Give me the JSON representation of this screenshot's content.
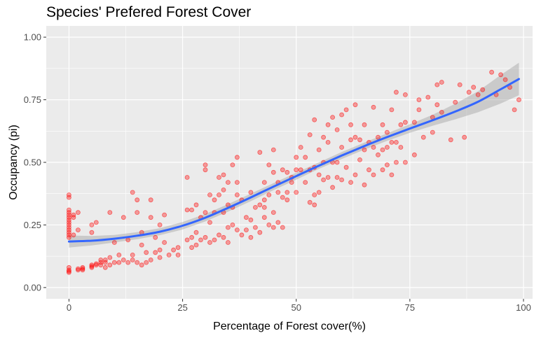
{
  "chart_data": {
    "type": "scatter",
    "title": "Species' Prefered Forest Cover",
    "xlabel": "Percentage of Forest cover(%)",
    "ylabel": "Occupancy (pi)",
    "xlim": [
      -5,
      102
    ],
    "ylim": [
      -0.045,
      1.045
    ],
    "x_ticks": [
      0,
      25,
      50,
      75,
      100
    ],
    "x_tick_labels": [
      "0",
      "25",
      "50",
      "75",
      "100"
    ],
    "y_ticks": [
      0,
      0.25,
      0.5,
      0.75,
      1.0
    ],
    "y_tick_labels": [
      "0.00",
      "0.25",
      "0.50",
      "0.75",
      "1.00"
    ],
    "grid": true,
    "legend": "none",
    "colors": {
      "panel_background": "#ebebeb",
      "grid": "#ffffff",
      "points": "#ff0000",
      "smooth_line": "#3366ff",
      "confidence_band": "#999999"
    },
    "points": [
      [
        0,
        0.37
      ],
      [
        0,
        0.36
      ],
      [
        0,
        0.31
      ],
      [
        0,
        0.3
      ],
      [
        0,
        0.29
      ],
      [
        0,
        0.28
      ],
      [
        0,
        0.27
      ],
      [
        0,
        0.26
      ],
      [
        0,
        0.25
      ],
      [
        0,
        0.24
      ],
      [
        0,
        0.23
      ],
      [
        0,
        0.22
      ],
      [
        0,
        0.21
      ],
      [
        0,
        0.2
      ],
      [
        0,
        0.08
      ],
      [
        0,
        0.07
      ],
      [
        0,
        0.065
      ],
      [
        0,
        0.06
      ],
      [
        1,
        0.29
      ],
      [
        1,
        0.28
      ],
      [
        1,
        0.21
      ],
      [
        2,
        0.3
      ],
      [
        2,
        0.23
      ],
      [
        2,
        0.07
      ],
      [
        2,
        0.075
      ],
      [
        3,
        0.075
      ],
      [
        3,
        0.08
      ],
      [
        3,
        0.07
      ],
      [
        5,
        0.25
      ],
      [
        5,
        0.22
      ],
      [
        5,
        0.09
      ],
      [
        5,
        0.08
      ],
      [
        5,
        0.085
      ],
      [
        6,
        0.26
      ],
      [
        6,
        0.09
      ],
      [
        6,
        0.095
      ],
      [
        7,
        0.1
      ],
      [
        7,
        0.11
      ],
      [
        7,
        0.09
      ],
      [
        8,
        0.11
      ],
      [
        8,
        0.1
      ],
      [
        8,
        0.08
      ],
      [
        9,
        0.3
      ],
      [
        9,
        0.12
      ],
      [
        9,
        0.09
      ],
      [
        10,
        0.18
      ],
      [
        10,
        0.1
      ],
      [
        11,
        0.13
      ],
      [
        11,
        0.1
      ],
      [
        12,
        0.28
      ],
      [
        12,
        0.11
      ],
      [
        13,
        0.19
      ],
      [
        13,
        0.1
      ],
      [
        14,
        0.38
      ],
      [
        14,
        0.13
      ],
      [
        14,
        0.11
      ],
      [
        15,
        0.35
      ],
      [
        15,
        0.3
      ],
      [
        15,
        0.1
      ],
      [
        16,
        0.22
      ],
      [
        16,
        0.17
      ],
      [
        16,
        0.09
      ],
      [
        17,
        0.14
      ],
      [
        17,
        0.1
      ],
      [
        18,
        0.35
      ],
      [
        18,
        0.28
      ],
      [
        18,
        0.11
      ],
      [
        19,
        0.2
      ],
      [
        19,
        0.14
      ],
      [
        20,
        0.25
      ],
      [
        20,
        0.15
      ],
      [
        20,
        0.12
      ],
      [
        21,
        0.29
      ],
      [
        21,
        0.18
      ],
      [
        22,
        0.13
      ],
      [
        23,
        0.15
      ],
      [
        24,
        0.16
      ],
      [
        24,
        0.13
      ],
      [
        26,
        0.44
      ],
      [
        26,
        0.31
      ],
      [
        26,
        0.19
      ],
      [
        27,
        0.31
      ],
      [
        27,
        0.2
      ],
      [
        27,
        0.16
      ],
      [
        28,
        0.33
      ],
      [
        28,
        0.22
      ],
      [
        28,
        0.17
      ],
      [
        29,
        0.28
      ],
      [
        29,
        0.19
      ],
      [
        30,
        0.49
      ],
      [
        30,
        0.47
      ],
      [
        30,
        0.3
      ],
      [
        30,
        0.2
      ],
      [
        31,
        0.37
      ],
      [
        31,
        0.26
      ],
      [
        31,
        0.18
      ],
      [
        32,
        0.35
      ],
      [
        32,
        0.3
      ],
      [
        32,
        0.19
      ],
      [
        33,
        0.44
      ],
      [
        33,
        0.37
      ],
      [
        33,
        0.21
      ],
      [
        34,
        0.45
      ],
      [
        34,
        0.39
      ],
      [
        34,
        0.3
      ],
      [
        34,
        0.2
      ],
      [
        35,
        0.42
      ],
      [
        35,
        0.33
      ],
      [
        35,
        0.24
      ],
      [
        35,
        0.18
      ],
      [
        36,
        0.49
      ],
      [
        36,
        0.32
      ],
      [
        36,
        0.25
      ],
      [
        37,
        0.52
      ],
      [
        37,
        0.42
      ],
      [
        37,
        0.37
      ],
      [
        37,
        0.23
      ],
      [
        38,
        0.21
      ],
      [
        38,
        0.35
      ],
      [
        39,
        0.28
      ],
      [
        39,
        0.23
      ],
      [
        40,
        0.38
      ],
      [
        40,
        0.27
      ],
      [
        40,
        0.2
      ],
      [
        41,
        0.32
      ],
      [
        41,
        0.24
      ],
      [
        42,
        0.54
      ],
      [
        42,
        0.33
      ],
      [
        42,
        0.22
      ],
      [
        43,
        0.42
      ],
      [
        43,
        0.35
      ],
      [
        43,
        0.32
      ],
      [
        43,
        0.28
      ],
      [
        44,
        0.49
      ],
      [
        44,
        0.37
      ],
      [
        44,
        0.25
      ],
      [
        45,
        0.55
      ],
      [
        45,
        0.46
      ],
      [
        45,
        0.3
      ],
      [
        45,
        0.24
      ],
      [
        46,
        0.42
      ],
      [
        46,
        0.38
      ],
      [
        46,
        0.26
      ],
      [
        47,
        0.47
      ],
      [
        47,
        0.36
      ],
      [
        47,
        0.24
      ],
      [
        48,
        0.46
      ],
      [
        48,
        0.38
      ],
      [
        48,
        0.35
      ],
      [
        49,
        0.44
      ],
      [
        49,
        0.42
      ],
      [
        50,
        0.52
      ],
      [
        50,
        0.47
      ],
      [
        50,
        0.38
      ],
      [
        51,
        0.56
      ],
      [
        51,
        0.47
      ],
      [
        52,
        0.52
      ],
      [
        52,
        0.42
      ],
      [
        53,
        0.61
      ],
      [
        53,
        0.47
      ],
      [
        53,
        0.34
      ],
      [
        54,
        0.67
      ],
      [
        54,
        0.48
      ],
      [
        54,
        0.37
      ],
      [
        54,
        0.33
      ],
      [
        55,
        0.55
      ],
      [
        55,
        0.45
      ],
      [
        55,
        0.38
      ],
      [
        56,
        0.6
      ],
      [
        56,
        0.5
      ],
      [
        56,
        0.43
      ],
      [
        57,
        0.65
      ],
      [
        57,
        0.58
      ],
      [
        57,
        0.44
      ],
      [
        58,
        0.68
      ],
      [
        58,
        0.5
      ],
      [
        58,
        0.4
      ],
      [
        59,
        0.63
      ],
      [
        59,
        0.5
      ],
      [
        59,
        0.44
      ],
      [
        60,
        0.69
      ],
      [
        60,
        0.56
      ],
      [
        60,
        0.43
      ],
      [
        61,
        0.71
      ],
      [
        61,
        0.48
      ],
      [
        62,
        0.65
      ],
      [
        62,
        0.59
      ],
      [
        62,
        0.42
      ],
      [
        63,
        0.73
      ],
      [
        63,
        0.6
      ],
      [
        63,
        0.45
      ],
      [
        64,
        0.59
      ],
      [
        64,
        0.51
      ],
      [
        65,
        0.65
      ],
      [
        65,
        0.55
      ],
      [
        65,
        0.41
      ],
      [
        66,
        0.58
      ],
      [
        66,
        0.47
      ],
      [
        67,
        0.72
      ],
      [
        67,
        0.56
      ],
      [
        67,
        0.45
      ],
      [
        68,
        0.6
      ],
      [
        68,
        0.53
      ],
      [
        69,
        0.65
      ],
      [
        69,
        0.55
      ],
      [
        69,
        0.47
      ],
      [
        70,
        0.62
      ],
      [
        70,
        0.56
      ],
      [
        70,
        0.49
      ],
      [
        71,
        0.71
      ],
      [
        71,
        0.58
      ],
      [
        71,
        0.45
      ],
      [
        72,
        0.78
      ],
      [
        72,
        0.58
      ],
      [
        72,
        0.5
      ],
      [
        73,
        0.65
      ],
      [
        73,
        0.56
      ],
      [
        74,
        0.77
      ],
      [
        74,
        0.66
      ],
      [
        74,
        0.5
      ],
      [
        76,
        0.66
      ],
      [
        76,
        0.53
      ],
      [
        77,
        0.75
      ],
      [
        77,
        0.71
      ],
      [
        78,
        0.6
      ],
      [
        79,
        0.76
      ],
      [
        80,
        0.68
      ],
      [
        80,
        0.62
      ],
      [
        81,
        0.81
      ],
      [
        81,
        0.73
      ],
      [
        82,
        0.82
      ],
      [
        82,
        0.7
      ],
      [
        84,
        0.59
      ],
      [
        85,
        0.74
      ],
      [
        86,
        0.81
      ],
      [
        87,
        0.6
      ],
      [
        88,
        0.78
      ],
      [
        89,
        0.8
      ],
      [
        90,
        0.77
      ],
      [
        91,
        0.79
      ],
      [
        93,
        0.86
      ],
      [
        94,
        0.77
      ],
      [
        95,
        0.85
      ],
      [
        96,
        0.83
      ],
      [
        97,
        0.8
      ],
      [
        98,
        0.71
      ],
      [
        99,
        0.75
      ]
    ],
    "smooth_fit": {
      "x": [
        0,
        5,
        10,
        15,
        20,
        25,
        30,
        35,
        40,
        45,
        50,
        55,
        60,
        65,
        70,
        75,
        80,
        85,
        90,
        95,
        99
      ],
      "y": [
        0.184,
        0.187,
        0.195,
        0.207,
        0.223,
        0.247,
        0.279,
        0.318,
        0.36,
        0.403,
        0.445,
        0.487,
        0.527,
        0.565,
        0.601,
        0.635,
        0.668,
        0.703,
        0.742,
        0.792,
        0.833
      ],
      "ci_lower": [
        0.16,
        0.168,
        0.18,
        0.193,
        0.209,
        0.232,
        0.264,
        0.303,
        0.345,
        0.389,
        0.431,
        0.474,
        0.513,
        0.551,
        0.586,
        0.618,
        0.646,
        0.672,
        0.7,
        0.735,
        0.768
      ],
      "ci_upper": [
        0.208,
        0.206,
        0.21,
        0.221,
        0.237,
        0.262,
        0.294,
        0.333,
        0.375,
        0.417,
        0.459,
        0.5,
        0.541,
        0.579,
        0.616,
        0.652,
        0.69,
        0.734,
        0.784,
        0.849,
        0.898
      ]
    }
  }
}
